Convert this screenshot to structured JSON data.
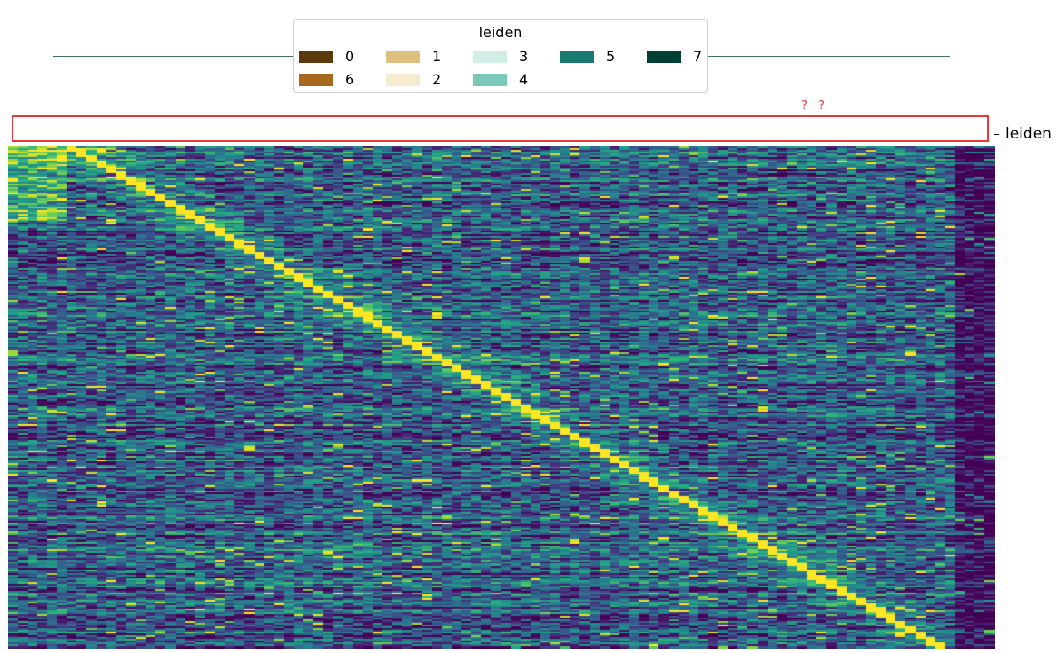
{
  "chart_data": {
    "type": "heatmap",
    "colormap": "viridis",
    "legend": {
      "title": "leiden",
      "entries": [
        {
          "label": "0",
          "color": "#5c3a0e"
        },
        {
          "label": "1",
          "color": "#dfbf7e"
        },
        {
          "label": "3",
          "color": "#d1ede6"
        },
        {
          "label": "5",
          "color": "#1b7a70"
        },
        {
          "label": "7",
          "color": "#003f32"
        },
        {
          "label": "6",
          "color": "#a7691f"
        },
        {
          "label": "2",
          "color": "#f6ebcf"
        },
        {
          "label": "4",
          "color": "#7dc9b9"
        }
      ]
    },
    "annotation_row_label": "leiden",
    "annotation_marks": "? ?",
    "n_columns": 100,
    "n_rows": 280,
    "pattern": "diagonal ridge of maximal values running from top-left to bottom-right"
  }
}
